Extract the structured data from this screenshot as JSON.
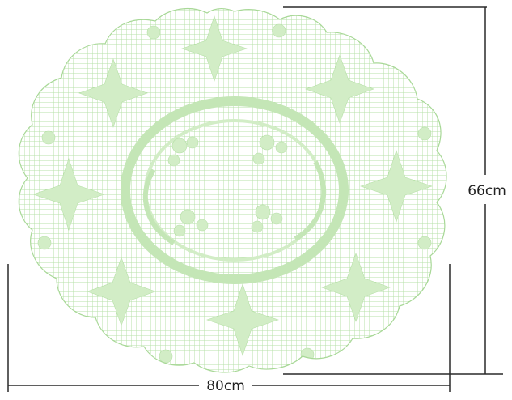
{
  "dimensions": {
    "width_label": "80cm",
    "height_label": "66cm"
  },
  "colors": {
    "mesh": "#b7e0a8",
    "solid": "#d2edc6",
    "line": "#2a2a2a",
    "background": "#ffffff"
  }
}
